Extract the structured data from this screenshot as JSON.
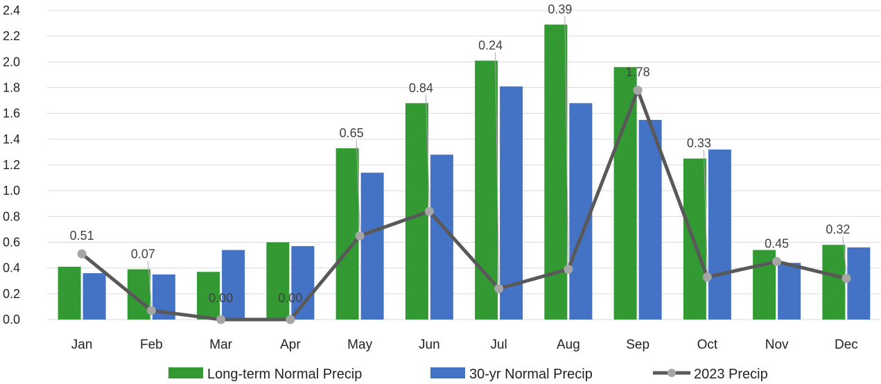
{
  "chart_data": {
    "type": "bar",
    "categories": [
      "Jan",
      "Feb",
      "Mar",
      "Apr",
      "May",
      "Jun",
      "Jul",
      "Aug",
      "Sep",
      "Oct",
      "Nov",
      "Dec"
    ],
    "series": [
      {
        "name": "Long-term Normal Precip",
        "type": "bar",
        "color": "#339933",
        "values": [
          0.41,
          0.39,
          0.37,
          0.6,
          1.33,
          1.68,
          2.01,
          2.29,
          1.96,
          1.25,
          0.54,
          0.58
        ]
      },
      {
        "name": "30-yr Normal Precip",
        "type": "bar",
        "color": "#4472c4",
        "values": [
          0.36,
          0.35,
          0.54,
          0.57,
          1.14,
          1.28,
          1.81,
          1.68,
          1.55,
          1.32,
          0.44,
          0.56
        ]
      },
      {
        "name": "2023 Precip",
        "type": "line",
        "color": "#595959",
        "marker_color": "#a6a6a6",
        "values": [
          0.51,
          0.07,
          0.0,
          0.0,
          0.65,
          0.84,
          0.24,
          0.39,
          1.78,
          0.33,
          0.45,
          0.32
        ],
        "labels": [
          "0.51",
          "0.07",
          "0.00",
          "0.00",
          "0.65",
          "0.84",
          "0.24",
          "0.39",
          "1.78",
          "0.33",
          "0.45",
          "0.32"
        ]
      }
    ],
    "ylim": [
      0,
      2.4
    ],
    "yticks": [
      "0.0",
      "0.2",
      "0.4",
      "0.6",
      "0.8",
      "1.0",
      "1.2",
      "1.4",
      "1.6",
      "1.8",
      "2.0",
      "2.2",
      "2.4"
    ],
    "grid": true,
    "legend_position": "bottom"
  }
}
